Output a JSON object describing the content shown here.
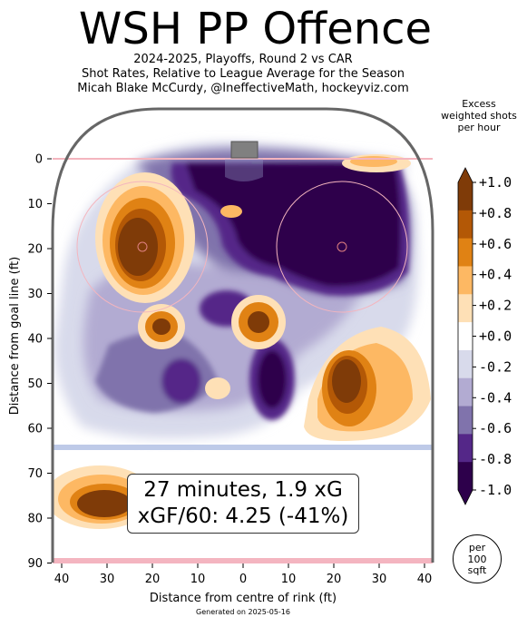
{
  "header": {
    "title": "WSH PP Offence",
    "subtitle1": "2024-2025, Playoffs, Round 2 vs CAR",
    "subtitle2": "Shot Rates, Relative to League Average for the Season",
    "subtitle3": "Micah Blake McCurdy, @IneffectiveMath, hockeyviz.com"
  },
  "colorbar": {
    "title_line1": "Excess",
    "title_line2": "weighted shots",
    "title_line3": "per hour",
    "labels": [
      "+1.0",
      "+0.8",
      "+0.6",
      "+0.4",
      "+0.2",
      "+0.0",
      "-0.2",
      "-0.4",
      "-0.6",
      "-0.8",
      "-1.0"
    ],
    "colors": [
      "#7f3b08",
      "#b35806",
      "#e08214",
      "#fdb863",
      "#fee0b6",
      "#ffffff",
      "#d8daeb",
      "#b2abd2",
      "#8073ac",
      "#542788",
      "#2d004b"
    ]
  },
  "stats": {
    "line1": "27 minutes, 1.9 xG",
    "line2": "xGF/60: 4.25 (-41%)"
  },
  "badge": {
    "line1": "per",
    "line2": "100",
    "line3": "sqft"
  },
  "footer": "Generated on 2025-05-16",
  "chart_data": {
    "type": "heatmap",
    "xlabel": "Distance from centre of rink (ft)",
    "ylabel": "Distance from goal line (ft)",
    "xlim": [
      -42.5,
      42.5
    ],
    "ylim": [
      90,
      -11
    ],
    "x_ticks": [
      "40",
      "30",
      "20",
      "10",
      "0",
      "10",
      "20",
      "30",
      "40"
    ],
    "y_ticks": [
      "0",
      "10",
      "20",
      "30",
      "40",
      "50",
      "60",
      "70",
      "80",
      "90"
    ],
    "value_range": [
      -1.0,
      1.0
    ],
    "hotspots": [
      {
        "x": -19,
        "y": 19,
        "value": 1.0
      },
      {
        "x": -30,
        "y": 76,
        "value": 1.0
      },
      {
        "x": 25,
        "y": 49,
        "value": 1.0
      },
      {
        "x": 32,
        "y": 1,
        "value": 0.4
      },
      {
        "x": -18,
        "y": 38,
        "value": 1.0
      },
      {
        "x": 4,
        "y": 37,
        "value": 1.0
      },
      {
        "x": -5,
        "y": 51,
        "value": 0.4
      },
      {
        "x": -3,
        "y": 12,
        "value": 0.2
      }
    ],
    "coldspots": [
      {
        "x": 10,
        "y": 15,
        "value": -1.0
      },
      {
        "x": 5,
        "y": 50,
        "value": -1.0
      },
      {
        "x": -10,
        "y": 45,
        "value": -0.6
      }
    ]
  }
}
